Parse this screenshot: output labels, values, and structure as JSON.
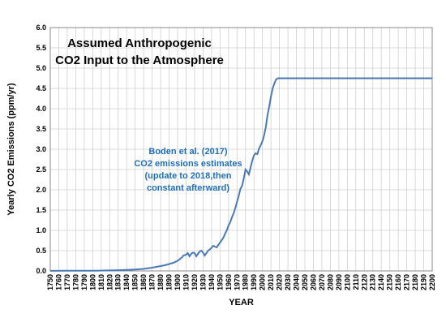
{
  "chart_data": {
    "type": "line",
    "title_lines": [
      "Assumed Anthropogenic",
      "CO2 Input to the Atmosphere"
    ],
    "xlabel": "YEAR",
    "ylabel": "Yearly CO2 Emissions (ppm/yr)",
    "xlim": [
      1750,
      2200
    ],
    "ylim": [
      0,
      6
    ],
    "x_ticks": [
      1750,
      1760,
      1770,
      1780,
      1790,
      1800,
      1810,
      1820,
      1830,
      1840,
      1850,
      1860,
      1870,
      1880,
      1890,
      1900,
      1910,
      1920,
      1930,
      1940,
      1950,
      1960,
      1970,
      1980,
      1990,
      2000,
      2010,
      2020,
      2030,
      2040,
      2050,
      2060,
      2070,
      2080,
      2090,
      2100,
      2110,
      2120,
      2130,
      2140,
      2150,
      2160,
      2170,
      2180,
      2190,
      2200
    ],
    "y_ticks": [
      "0.0",
      "0.5",
      "1.0",
      "1.5",
      "2.0",
      "2.5",
      "3.0",
      "3.5",
      "4.0",
      "4.5",
      "5.0",
      "5.5",
      "6.0"
    ],
    "grid": true,
    "annotation_lines": [
      "Boden et al. (2017)",
      "CO2 emissions estimates",
      "(update to 2018,then",
      "constant afterward)"
    ],
    "line_color": "#4a7ab5",
    "annotation_color": "#1f6fb8",
    "series": [
      {
        "x": [
          1750,
          1770,
          1790,
          1800,
          1810,
          1820,
          1830,
          1840,
          1850,
          1860,
          1865,
          1870,
          1875,
          1880,
          1885,
          1890,
          1895,
          1900,
          1905,
          1907,
          1910,
          1912,
          1914,
          1916,
          1918,
          1920,
          1922,
          1924,
          1926,
          1928,
          1930,
          1932,
          1934,
          1936,
          1938,
          1940,
          1942,
          1944,
          1946,
          1948,
          1950,
          1952,
          1954,
          1956,
          1958,
          1960,
          1962,
          1964,
          1966,
          1968,
          1970,
          1972,
          1974,
          1976,
          1978,
          1980,
          1982,
          1984,
          1986,
          1988,
          1990,
          1992,
          1994,
          1996,
          1998,
          2000,
          2002,
          2004,
          2006,
          2008,
          2010,
          2012,
          2014,
          2016,
          2018,
          2100,
          2200
        ],
        "y": [
          0.003,
          0.004,
          0.005,
          0.006,
          0.008,
          0.012,
          0.018,
          0.025,
          0.035,
          0.05,
          0.065,
          0.08,
          0.1,
          0.12,
          0.14,
          0.17,
          0.2,
          0.25,
          0.33,
          0.38,
          0.4,
          0.44,
          0.36,
          0.42,
          0.45,
          0.44,
          0.36,
          0.42,
          0.48,
          0.5,
          0.45,
          0.38,
          0.44,
          0.5,
          0.53,
          0.57,
          0.62,
          0.6,
          0.58,
          0.64,
          0.7,
          0.76,
          0.82,
          0.92,
          1.0,
          1.12,
          1.2,
          1.32,
          1.42,
          1.55,
          1.7,
          1.85,
          2.02,
          2.1,
          2.28,
          2.5,
          2.45,
          2.38,
          2.55,
          2.72,
          2.85,
          2.9,
          2.88,
          3.02,
          3.1,
          3.2,
          3.35,
          3.55,
          3.85,
          4.05,
          4.3,
          4.5,
          4.62,
          4.72,
          4.75,
          4.75,
          4.75
        ]
      }
    ]
  }
}
